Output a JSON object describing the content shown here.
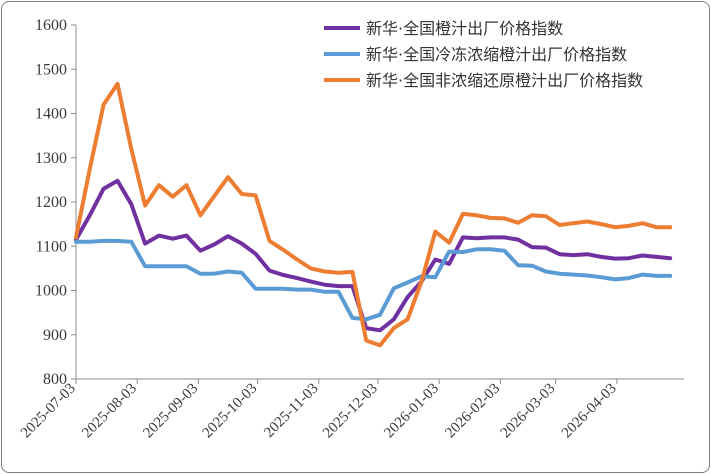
{
  "chart_data": {
    "type": "line",
    "title": "",
    "xlabel": "",
    "ylabel": "",
    "ylim": [
      800,
      1600
    ],
    "yticks": [
      800,
      900,
      1000,
      1100,
      1200,
      1300,
      1400,
      1500,
      1600
    ],
    "xtick_labels": [
      "2025-07-03",
      "2025-08-03",
      "2025-09-03",
      "2025-10-03",
      "2025-11-03",
      "2025-12-03",
      "2026-01-03",
      "2026-02-03",
      "2026-03-03",
      "2026-04-03"
    ],
    "grid": false,
    "legend_position": "top-right",
    "x": [
      "2025-07-03",
      "2025-07-10",
      "2025-07-17",
      "2025-07-24",
      "2025-07-31",
      "2025-08-07",
      "2025-08-14",
      "2025-08-21",
      "2025-08-28",
      "2025-09-04",
      "2025-09-11",
      "2025-09-18",
      "2025-09-25",
      "2025-10-02",
      "2025-10-09",
      "2025-10-16",
      "2025-10-23",
      "2025-10-30",
      "2025-11-06",
      "2025-11-13",
      "2025-11-20",
      "2025-11-27",
      "2025-12-04",
      "2025-12-11",
      "2025-12-18",
      "2025-12-25",
      "2026-01-01",
      "2026-01-08",
      "2026-01-15",
      "2026-01-22",
      "2026-01-29",
      "2026-02-05",
      "2026-02-12",
      "2026-02-19",
      "2026-02-26",
      "2026-03-05",
      "2026-03-12",
      "2026-03-19",
      "2026-03-26",
      "2026-04-02",
      "2026-04-09",
      "2026-04-16",
      "2026-04-23",
      "2026-04-30"
    ],
    "series": [
      {
        "name": "新华·全国橙汁出厂价格指数",
        "color": "#7030a0",
        "values": [
          1115,
          1170,
          1230,
          1248,
          1195,
          1106,
          1124,
          1117,
          1124,
          1090,
          1104,
          1123,
          1106,
          1083,
          1045,
          1035,
          1028,
          1020,
          1013,
          1010,
          1010,
          915,
          910,
          935,
          985,
          1020,
          1070,
          1060,
          1120,
          1118,
          1120,
          1120,
          1115,
          1098,
          1097,
          1082,
          1080,
          1082,
          1076,
          1072,
          1073,
          1079,
          1076,
          1073
        ]
      },
      {
        "name": "新华·全国冷冻浓缩橙汁出厂价格指数",
        "color": "#5b9bd5",
        "values": [
          1110,
          1110,
          1112,
          1112,
          1110,
          1055,
          1055,
          1055,
          1055,
          1038,
          1038,
          1043,
          1040,
          1004,
          1004,
          1004,
          1002,
          1002,
          997,
          997,
          938,
          935,
          945,
          1005,
          1018,
          1032,
          1030,
          1088,
          1087,
          1093,
          1093,
          1090,
          1057,
          1056,
          1043,
          1038,
          1036,
          1034,
          1030,
          1025,
          1028,
          1036,
          1033,
          1033
        ]
      },
      {
        "name": "新华·全国非浓缩还原橙汁出厂价格指数",
        "color": "#ed7d31",
        "values": [
          1120,
          1275,
          1420,
          1467,
          1320,
          1192,
          1238,
          1212,
          1238,
          1170,
          1213,
          1256,
          1218,
          1215,
          1112,
          1092,
          1070,
          1050,
          1043,
          1040,
          1042,
          887,
          876,
          915,
          935,
          1020,
          1133,
          1108,
          1173,
          1170,
          1164,
          1163,
          1153,
          1170,
          1168,
          1148,
          1152,
          1156,
          1150,
          1143,
          1146,
          1152,
          1143,
          1143
        ]
      }
    ]
  }
}
